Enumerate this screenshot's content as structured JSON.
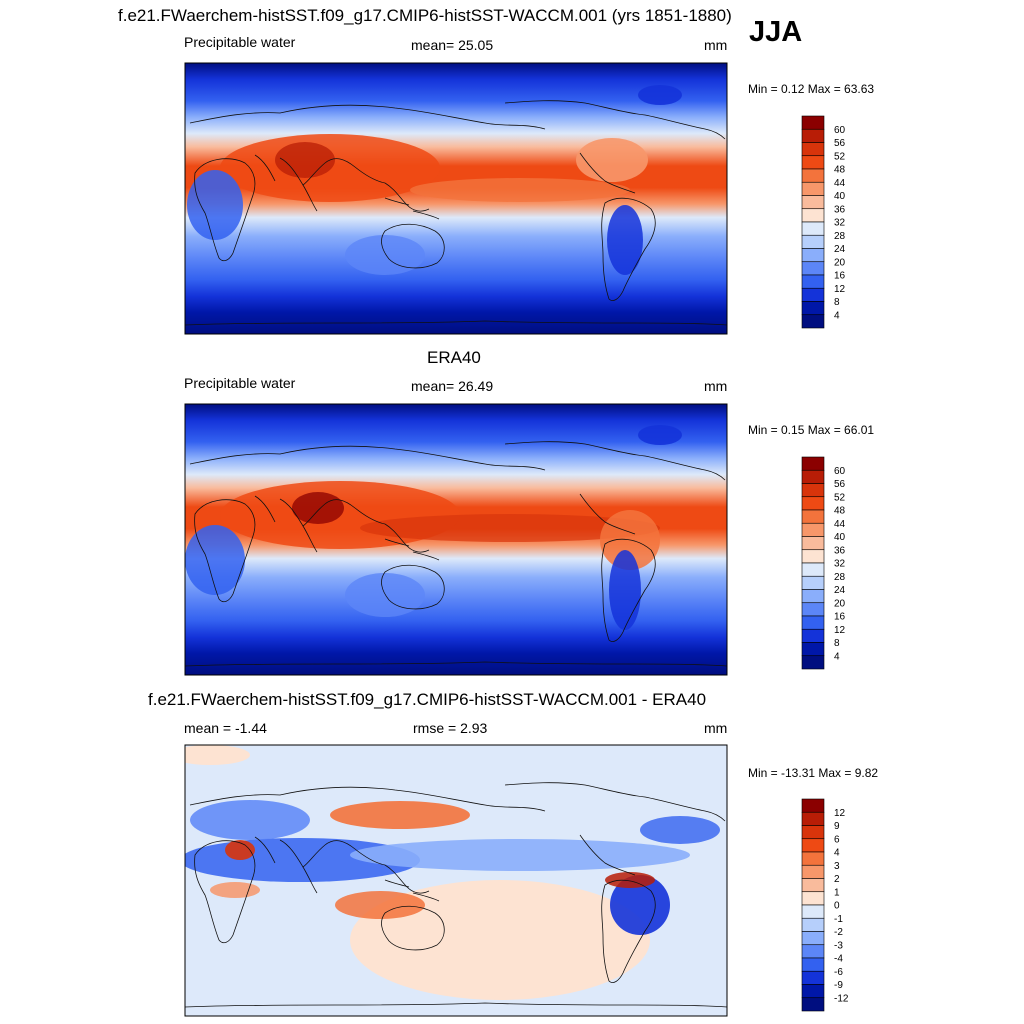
{
  "figure": {
    "season": "JJA",
    "units": "mm"
  },
  "panels": [
    {
      "title": "f.e21.FWaerchem-histSST.f09_g17.CMIP6-histSST-WACCM.001 (yrs 1851-1880)",
      "left_label": "Precipitable water",
      "center_label": "mean=  25.05",
      "right_label": "mm",
      "minmax": "Min =   0.12 Max =  63.63"
    },
    {
      "title": "ERA40",
      "left_label": "Precipitable water",
      "center_label": "mean=  26.49",
      "right_label": "mm",
      "minmax": "Min =   0.15 Max =  66.01"
    },
    {
      "title": "f.e21.FWaerchem-histSST.f09_g17.CMIP6-histSST-WACCM.001 - ERA40",
      "left_label": "mean =  -1.44",
      "center_label": "rmse =   2.93",
      "right_label": "mm",
      "minmax": "Min = -13.31 Max =   9.82"
    }
  ],
  "colorbars": {
    "field": {
      "labels": [
        "60",
        "56",
        "52",
        "48",
        "44",
        "40",
        "36",
        "32",
        "28",
        "24",
        "20",
        "16",
        "12",
        "8",
        "4"
      ],
      "colors": [
        "#8b0000",
        "#b81d06",
        "#d8340b",
        "#ee4a14",
        "#f3733c",
        "#f7976a",
        "#f9bb9c",
        "#fde3d2",
        "#dde9fa",
        "#b6cffb",
        "#8aaefb",
        "#5c86f7",
        "#3361f0",
        "#1433d9",
        "#0017a8",
        "#000e80"
      ]
    },
    "diff": {
      "labels": [
        "12",
        "9",
        "6",
        "4",
        "3",
        "2",
        "1",
        "0",
        "-1",
        "-2",
        "-3",
        "-4",
        "-6",
        "-9",
        "-12"
      ],
      "colors": [
        "#8b0000",
        "#b81d06",
        "#d8340b",
        "#ee4a14",
        "#f3733c",
        "#f7976a",
        "#f9bb9c",
        "#fde3d2",
        "#dde9fa",
        "#b6cffb",
        "#8aaefb",
        "#5c86f7",
        "#3361f0",
        "#1433d9",
        "#0017a8",
        "#000e80"
      ]
    }
  },
  "chart_data": [
    {
      "type": "heatmap",
      "title": "f.e21.FWaerchem-histSST.f09_g17.CMIP6-histSST-WACCM.001 (yrs 1851-1880)",
      "variable": "Precipitable water",
      "units": "mm",
      "mean": 25.05,
      "min": 0.12,
      "max": 63.63,
      "contour_levels": [
        4,
        8,
        12,
        16,
        20,
        24,
        28,
        32,
        36,
        40,
        44,
        48,
        52,
        56,
        60
      ]
    },
    {
      "type": "heatmap",
      "title": "ERA40",
      "variable": "Precipitable water",
      "units": "mm",
      "mean": 26.49,
      "min": 0.15,
      "max": 66.01,
      "contour_levels": [
        4,
        8,
        12,
        16,
        20,
        24,
        28,
        32,
        36,
        40,
        44,
        48,
        52,
        56,
        60
      ]
    },
    {
      "type": "heatmap",
      "title": "f.e21.FWaerchem-histSST.f09_g17.CMIP6-histSST-WACCM.001 - ERA40",
      "units": "mm",
      "mean": -1.44,
      "rmse": 2.93,
      "min": -13.31,
      "max": 9.82,
      "contour_levels": [
        -12,
        -9,
        -6,
        -4,
        -3,
        -2,
        -1,
        0,
        1,
        2,
        3,
        4,
        6,
        9,
        12
      ]
    }
  ]
}
